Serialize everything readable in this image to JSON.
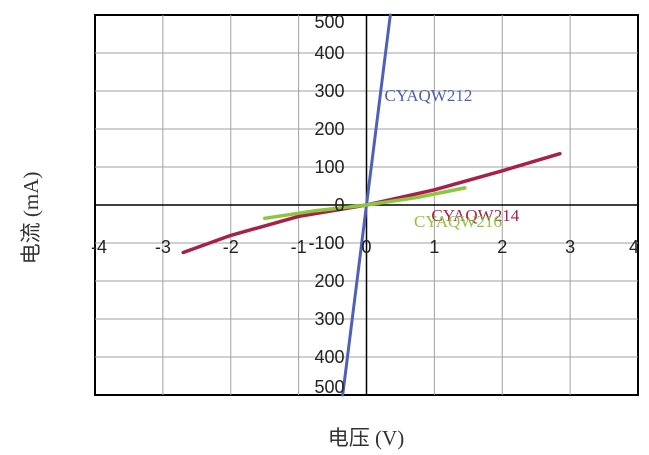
{
  "chart_data": {
    "type": "line",
    "title": "",
    "xlabel": "电压 (V)",
    "ylabel": "电流 (mA)",
    "xlim": [
      -4,
      4
    ],
    "ylim": [
      -500,
      500
    ],
    "x_ticks": [
      "-4",
      "-3",
      "-2",
      "-1",
      "0",
      "1",
      "2",
      "3",
      "4"
    ],
    "y_ticks": [
      "500",
      "400",
      "300",
      "200",
      "100",
      "0",
      "-100",
      "200",
      "300",
      "400",
      "500"
    ],
    "grid": true,
    "series": [
      {
        "name": "CYAQW212",
        "color": "#5060b8",
        "points": [
          [
            -0.35,
            -500
          ],
          [
            0,
            0
          ],
          [
            0.35,
            500
          ]
        ]
      },
      {
        "name": "CYAQW214",
        "color": "#a8204a",
        "points": [
          [
            -2.7,
            -125
          ],
          [
            -2.0,
            -80
          ],
          [
            -1.0,
            -30
          ],
          [
            0,
            0
          ],
          [
            1.0,
            40
          ],
          [
            2.0,
            90
          ],
          [
            2.85,
            135
          ]
        ]
      },
      {
        "name": "CYAQW216",
        "color": "#8cc63c",
        "points": [
          [
            -1.5,
            -35
          ],
          [
            -0.75,
            -15
          ],
          [
            0,
            0
          ],
          [
            0.75,
            20
          ],
          [
            1.45,
            45
          ]
        ]
      }
    ]
  }
}
